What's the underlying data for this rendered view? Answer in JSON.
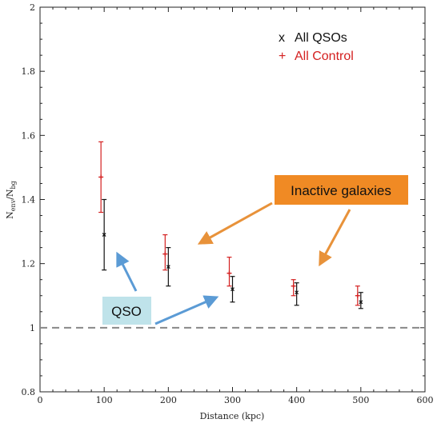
{
  "chart_data": {
    "type": "scatter",
    "xlabel": "Distance (kpc)",
    "ylabel_main": "N",
    "ylabel_main_sub": "env",
    "ylabel_den": "N",
    "ylabel_den_sub": "bg",
    "xlim": [
      0,
      600
    ],
    "ylim": [
      0.8,
      2.0
    ],
    "x_ticks": [
      "0",
      "100",
      "200",
      "300",
      "400",
      "500",
      "600"
    ],
    "y_ticks": [
      "0.8",
      "1",
      "1.2",
      "1.4",
      "1.6",
      "1.8",
      "2"
    ],
    "reference_line": {
      "y": 1.0,
      "style": "dashed"
    },
    "legend_position": "top-right",
    "series": [
      {
        "name": "All QSOs",
        "marker": "x",
        "color": "#111111",
        "points": [
          {
            "x": 100,
            "y": 1.29,
            "ylow": 1.18,
            "yhigh": 1.4
          },
          {
            "x": 200,
            "y": 1.19,
            "ylow": 1.13,
            "yhigh": 1.25
          },
          {
            "x": 300,
            "y": 1.12,
            "ylow": 1.08,
            "yhigh": 1.16
          },
          {
            "x": 400,
            "y": 1.11,
            "ylow": 1.07,
            "yhigh": 1.14
          },
          {
            "x": 500,
            "y": 1.08,
            "ylow": 1.06,
            "yhigh": 1.11
          }
        ]
      },
      {
        "name": "All Control",
        "marker": "+",
        "color": "#d42020",
        "points": [
          {
            "x": 95,
            "y": 1.47,
            "ylow": 1.36,
            "yhigh": 1.58
          },
          {
            "x": 195,
            "y": 1.23,
            "ylow": 1.18,
            "yhigh": 1.29
          },
          {
            "x": 295,
            "y": 1.17,
            "ylow": 1.13,
            "yhigh": 1.22
          },
          {
            "x": 395,
            "y": 1.13,
            "ylow": 1.1,
            "yhigh": 1.15
          },
          {
            "x": 495,
            "y": 1.1,
            "ylow": 1.07,
            "yhigh": 1.13
          }
        ]
      }
    ],
    "annotations": {
      "qso_label": "QSO",
      "inactive_label": "Inactive galaxies",
      "qso_box_color": "#bfe3ea",
      "inactive_box_color": "#f08a24",
      "qso_arrow_color": "#5b9bd5",
      "inactive_arrow_color": "#e8923a"
    }
  }
}
